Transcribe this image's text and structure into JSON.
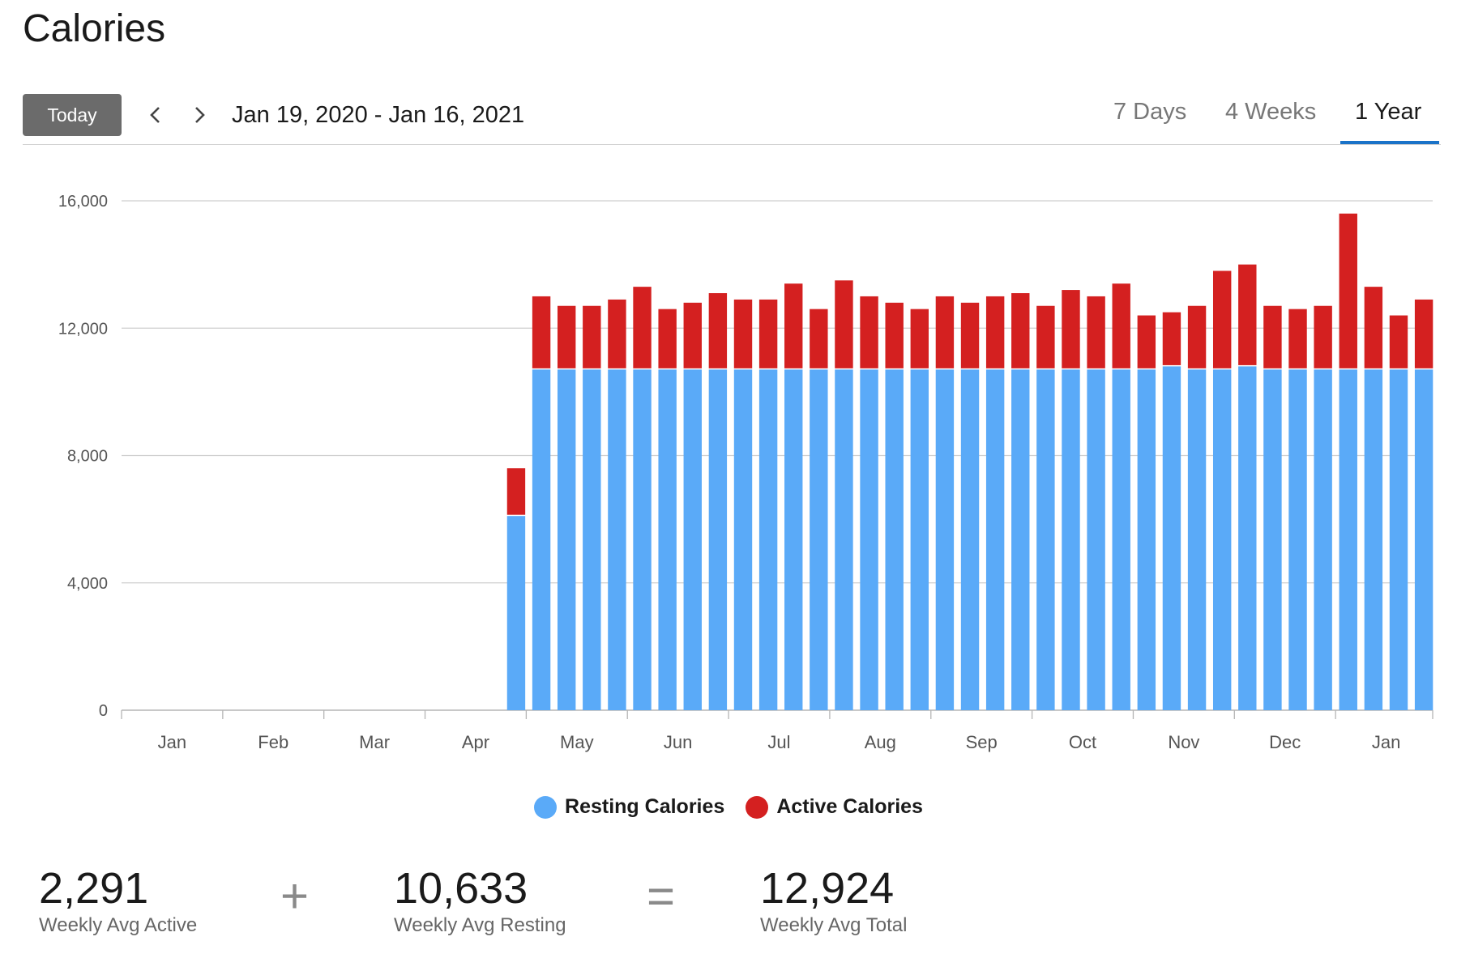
{
  "page": {
    "title": "Calories"
  },
  "toolbar": {
    "today_label": "Today",
    "date_range": "Jan 19, 2020 - Jan 16, 2021",
    "tabs": [
      {
        "label": "7 Days",
        "active": false
      },
      {
        "label": "4 Weeks",
        "active": false
      },
      {
        "label": "1 Year",
        "active": true
      }
    ],
    "prev_icon": "chevron-left-icon",
    "next_icon": "chevron-right-icon",
    "accent_color": "#1a73c8"
  },
  "chart_data": {
    "type": "bar",
    "stacked": true,
    "ylim": [
      0,
      16000
    ],
    "y_ticks": [
      0,
      4000,
      8000,
      12000,
      16000
    ],
    "y_tick_labels": [
      "0",
      "4,000",
      "8,000",
      "12,000",
      "16,000"
    ],
    "x_month_labels": [
      "Jan",
      "Feb",
      "Mar",
      "Apr",
      "May",
      "Jun",
      "Jul",
      "Aug",
      "Sep",
      "Oct",
      "Nov",
      "Dec",
      "Jan"
    ],
    "grid": true,
    "legend_position": "bottom",
    "weeks_total": 52,
    "first_data_week": 15,
    "series": [
      {
        "name": "Resting Calories",
        "color": "#5aaaf8",
        "values": [
          6100,
          10700,
          10700,
          10700,
          10700,
          10700,
          10700,
          10700,
          10700,
          10700,
          10700,
          10700,
          10700,
          10700,
          10700,
          10700,
          10700,
          10700,
          10700,
          10700,
          10700,
          10700,
          10700,
          10700,
          10700,
          10700,
          10800,
          10700,
          10700,
          10800,
          10700,
          10700,
          10700,
          10700,
          10700,
          10700,
          10700
        ]
      },
      {
        "name": "Active Calories",
        "color": "#d42020",
        "values": [
          1500,
          2300,
          2000,
          2000,
          2200,
          2600,
          1900,
          2100,
          2400,
          2200,
          2200,
          2700,
          1900,
          2800,
          2300,
          2100,
          1900,
          2300,
          2100,
          2300,
          2400,
          2000,
          2500,
          2300,
          2700,
          1700,
          1700,
          2000,
          3100,
          3200,
          2000,
          1900,
          2000,
          4900,
          2600,
          1700,
          2200
        ]
      }
    ]
  },
  "legend": [
    {
      "label": "Resting Calories",
      "color": "#5aaaf8"
    },
    {
      "label": "Active Calories",
      "color": "#d42020"
    }
  ],
  "summary": {
    "active": {
      "value": "2,291",
      "label": "Weekly Avg Active"
    },
    "plus": "+",
    "resting": {
      "value": "10,633",
      "label": "Weekly Avg Resting"
    },
    "equals": "=",
    "total": {
      "value": "12,924",
      "label": "Weekly Avg Total"
    }
  }
}
